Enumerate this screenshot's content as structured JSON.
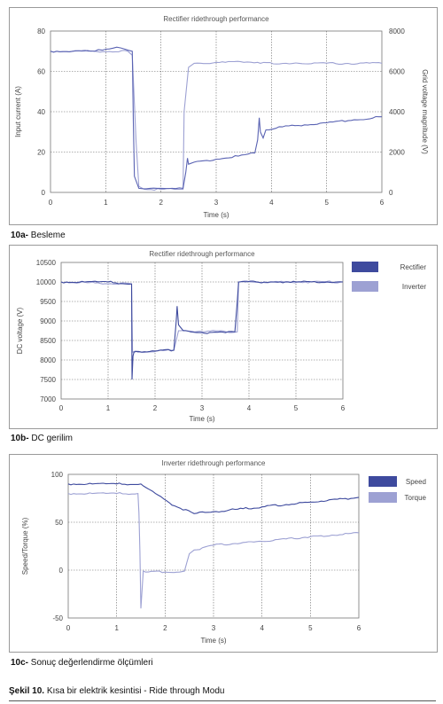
{
  "chart_data": [
    {
      "id": "a",
      "type": "line",
      "title": "Rectifier ridethrough performance",
      "xlabel": "Time (s)",
      "ylabel": "Input current (A)",
      "y2label": "Grid voltage magnitude (V)",
      "xlim": [
        0,
        6
      ],
      "ylim": [
        0,
        80
      ],
      "y2lim": [
        0,
        8000
      ],
      "xticks": [
        "0",
        "1",
        "2",
        "3",
        "4",
        "5",
        "6"
      ],
      "yticks": [
        "0",
        "20",
        "40",
        "60",
        "80"
      ],
      "y2ticks": [
        "0",
        "2000",
        "4000",
        "6000",
        "8000"
      ],
      "grid": true,
      "series": [
        {
          "axis": "left",
          "color": "#5a63b3",
          "x": [
            0,
            0.4,
            0.8,
            1.0,
            1.2,
            1.35,
            1.48,
            1.5,
            1.52,
            1.6,
            1.8,
            2.0,
            2.2,
            2.4,
            2.45,
            2.48,
            2.5,
            2.6,
            3.0,
            3.4,
            3.7,
            3.75,
            3.78,
            3.8,
            3.85,
            3.9,
            4.2,
            4.6,
            5.0,
            5.5,
            6.0
          ],
          "y": [
            70,
            70,
            70,
            71,
            72,
            71,
            70,
            35,
            8,
            2,
            2,
            2,
            2,
            2,
            10,
            17,
            14,
            15,
            16.5,
            18,
            19.5,
            26,
            37,
            30,
            27,
            31,
            32.5,
            33.5,
            34.5,
            36,
            37.5
          ]
        },
        {
          "axis": "right",
          "color": "#9da1d3",
          "x": [
            0,
            1.4,
            1.48,
            1.55,
            1.6,
            1.7,
            2.0,
            2.3,
            2.4,
            2.42,
            2.5,
            2.6,
            3.0,
            3.5,
            3.75,
            3.8,
            4.5,
            6.0
          ],
          "y": [
            7000,
            7000,
            6800,
            2500,
            300,
            150,
            150,
            150,
            150,
            4000,
            6200,
            6400,
            6450,
            6450,
            6450,
            6400,
            6400,
            6400
          ]
        }
      ]
    },
    {
      "id": "b",
      "type": "line",
      "title": "Rectifier ridethrough performance",
      "xlabel": "Time (s)",
      "ylabel": "DC voltage (V)",
      "xlim": [
        0,
        6
      ],
      "ylim": [
        7000,
        10500
      ],
      "xticks": [
        "0",
        "1",
        "2",
        "3",
        "4",
        "5",
        "6"
      ],
      "yticks": [
        "7000",
        "7500",
        "8000",
        "8500",
        "9000",
        "9500",
        "10000",
        "10500"
      ],
      "grid": true,
      "legend": "right",
      "series": [
        {
          "name": "Rectifier",
          "color": "#3e4a9e",
          "x": [
            0,
            0.5,
            1.0,
            1.5,
            1.51,
            1.53,
            1.55,
            1.6,
            2.0,
            2.4,
            2.45,
            2.47,
            2.5,
            2.6,
            3.0,
            3.5,
            3.7,
            3.75,
            3.78,
            3.8,
            4.5,
            5.0,
            6.0
          ],
          "y": [
            10000,
            10000,
            10000,
            9950,
            7500,
            8100,
            8200,
            8220,
            8230,
            8250,
            9000,
            9380,
            8900,
            8750,
            8700,
            8700,
            8720,
            9500,
            10000,
            10000,
            10000,
            10000,
            10000
          ]
        },
        {
          "name": "Inverter",
          "color": "#9da1d3",
          "x": [
            0,
            1.5,
            1.52,
            2.4,
            2.5,
            3.75,
            3.78,
            6.0
          ],
          "y": [
            10000,
            9950,
            8200,
            8250,
            8750,
            8720,
            10000,
            10000
          ]
        }
      ]
    },
    {
      "id": "c",
      "type": "line",
      "title": "Inverter ridethrough performance",
      "xlabel": "Time (s)",
      "ylabel": "Speed/Torque (%)",
      "xlim": [
        0,
        6
      ],
      "ylim": [
        -50,
        100
      ],
      "xticks": [
        "0",
        "1",
        "2",
        "3",
        "4",
        "5",
        "6"
      ],
      "yticks": [
        "-50",
        "0",
        "50",
        "100"
      ],
      "grid": true,
      "legend": "right",
      "series": [
        {
          "name": "Speed",
          "color": "#3e4a9e",
          "x": [
            0,
            0.5,
            1.0,
            1.5,
            1.8,
            2.2,
            2.6,
            3.0,
            4.0,
            5.0,
            6.0
          ],
          "y": [
            90,
            90,
            90,
            90,
            80,
            67,
            59,
            61,
            66,
            71,
            76
          ]
        },
        {
          "name": "Torque",
          "color": "#9da1d3",
          "x": [
            0,
            0.5,
            1.0,
            1.44,
            1.46,
            1.48,
            1.5,
            1.55,
            1.6,
            2.0,
            2.3,
            2.4,
            2.45,
            2.5,
            2.6,
            3.0,
            4.0,
            5.0,
            6.0
          ],
          "y": [
            80,
            80,
            80,
            80,
            60,
            20,
            -40,
            -1,
            -2,
            -2,
            -2,
            -1,
            8,
            17,
            21,
            26,
            30,
            35,
            39
          ]
        }
      ]
    }
  ],
  "captions": {
    "a_num": "10a-",
    "a_text": "Besleme",
    "b_num": "10b-",
    "b_text": "DC gerilim",
    "c_num": "10c-",
    "c_text": "Sonuç değerlendirme ölçümleri",
    "fig_num": "Şekil 10.",
    "fig_text": "Kısa bir elektrik kesintisi - Ride through Modu"
  }
}
